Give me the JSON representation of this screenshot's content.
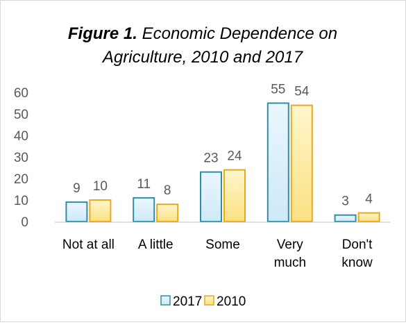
{
  "chart_data": {
    "type": "bar",
    "title_bold": "Figure 1.",
    "title_rest": " Economic Dependence on",
    "title_line2": "Agriculture, 2010 and 2017",
    "categories": [
      [
        "Not at all"
      ],
      [
        "A little"
      ],
      [
        "Some"
      ],
      [
        "Very",
        "much"
      ],
      [
        "Don't",
        "know"
      ]
    ],
    "series": [
      {
        "name": "2017",
        "values": [
          9,
          11,
          23,
          55,
          3
        ],
        "fill_top": "#eaf6fd",
        "fill_bottom": "#cfe9f8",
        "stroke": "#2f8da6"
      },
      {
        "name": "2010",
        "values": [
          10,
          8,
          24,
          54,
          4
        ],
        "fill_top": "#fff6cc",
        "fill_bottom": "#fbe182",
        "stroke": "#e6a91f"
      }
    ],
    "yticks": [
      0,
      10,
      20,
      30,
      40,
      50,
      60
    ],
    "ylim": [
      0,
      60
    ],
    "grid": false,
    "legend_position": "bottom",
    "colors": {
      "text": "#595959",
      "title": "#000000",
      "axis": "#bfbfbf"
    }
  }
}
